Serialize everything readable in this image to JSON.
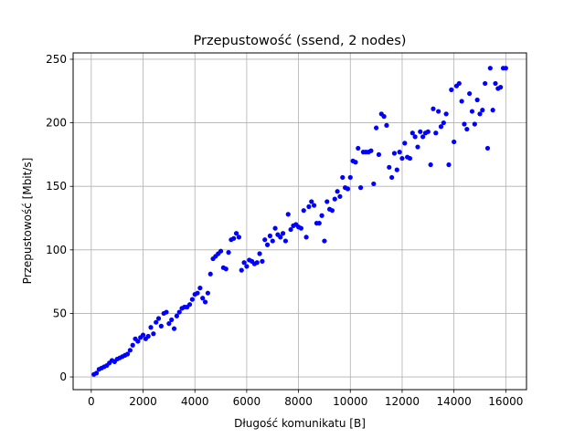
{
  "chart_data": {
    "type": "scatter",
    "title": "Przepustowość (ssend, 2 nodes)",
    "xlabel": "Długość komunikatu [B]",
    "ylabel": "Przepustowość [Mbit/s]",
    "xlim": [
      -700,
      16800
    ],
    "ylim": [
      -10,
      255
    ],
    "xticks": [
      0,
      2000,
      4000,
      6000,
      8000,
      10000,
      12000,
      14000,
      16000
    ],
    "yticks": [
      0,
      50,
      100,
      150,
      200,
      250
    ],
    "grid": true,
    "point_color": "#0000ff",
    "series": [
      {
        "x": [
          100,
          200,
          300,
          400,
          500,
          600,
          700,
          800,
          900,
          1000,
          1100,
          1200,
          1300,
          1400,
          1500,
          1600,
          1700,
          1800,
          1900,
          2000,
          2100,
          2200,
          2300,
          2400,
          2500,
          2600,
          2700,
          2800,
          2900,
          3000,
          3100,
          3200,
          3300,
          3400,
          3500,
          3600,
          3700,
          3800,
          3900,
          4000,
          4100,
          4200,
          4300,
          4400,
          4500,
          4600,
          4700,
          4800,
          4900,
          5000,
          5100,
          5200,
          5300,
          5400,
          5500,
          5600,
          5700,
          5800,
          5900,
          6000,
          6100,
          6200,
          6300,
          6400,
          6500,
          6600,
          6700,
          6800,
          6900,
          7000,
          7100,
          7200,
          7300,
          7400,
          7500,
          7600,
          7700,
          7800,
          7900,
          8000,
          8100,
          8200,
          8300,
          8400,
          8500,
          8600,
          8700,
          8800,
          8900,
          9000,
          9100,
          9200,
          9300,
          9400,
          9500,
          9600,
          9700,
          9800,
          9900,
          10000,
          10100,
          10200,
          10300,
          10400,
          10500,
          10600,
          10700,
          10800,
          10900,
          11000,
          11100,
          11200,
          11300,
          11400,
          11500,
          11600,
          11700,
          11800,
          11900,
          12000,
          12100,
          12200,
          12300,
          12400,
          12500,
          12600,
          12700,
          12800,
          12900,
          13000,
          13100,
          13200,
          13300,
          13400,
          13500,
          13600,
          13700,
          13800,
          13900,
          14000,
          14100,
          14200,
          14300,
          14400,
          14500,
          14600,
          14700,
          14800,
          14900,
          15000,
          15100,
          15200,
          15300,
          15400,
          15500,
          15600,
          15700,
          15800,
          15900,
          16000
        ],
        "y": [
          2,
          3,
          6,
          7,
          8,
          9,
          11,
          13,
          12,
          14,
          15,
          16,
          17,
          18,
          21,
          25,
          30,
          28,
          31,
          33,
          30,
          32,
          39,
          34,
          43,
          46,
          40,
          50,
          51,
          42,
          45,
          38,
          48,
          51,
          54,
          55,
          55,
          57,
          61,
          65,
          66,
          70,
          62,
          59,
          66,
          81,
          93,
          95,
          97,
          99,
          86,
          85,
          98,
          108,
          109,
          113,
          110,
          84,
          90,
          87,
          92,
          91,
          89,
          90,
          97,
          91,
          108,
          104,
          111,
          107,
          117,
          112,
          110,
          113,
          107,
          128,
          116,
          119,
          120,
          118,
          117,
          131,
          110,
          134,
          138,
          135,
          121,
          121,
          127,
          107,
          138,
          132,
          131,
          140,
          146,
          142,
          157,
          149,
          148,
          157,
          170,
          169,
          180,
          149,
          177,
          177,
          177,
          178,
          152,
          196,
          175,
          207,
          205,
          198,
          165,
          157,
          176,
          163,
          177,
          172,
          184,
          173,
          172,
          192,
          189,
          181,
          193,
          189,
          192,
          193,
          167,
          211,
          192,
          209,
          197,
          200,
          207,
          167,
          226,
          185,
          229,
          231,
          217,
          199,
          195,
          223,
          209,
          199,
          218,
          207,
          210,
          231,
          180,
          243,
          210,
          231,
          227,
          228,
          243,
          243
        ]
      }
    ]
  }
}
